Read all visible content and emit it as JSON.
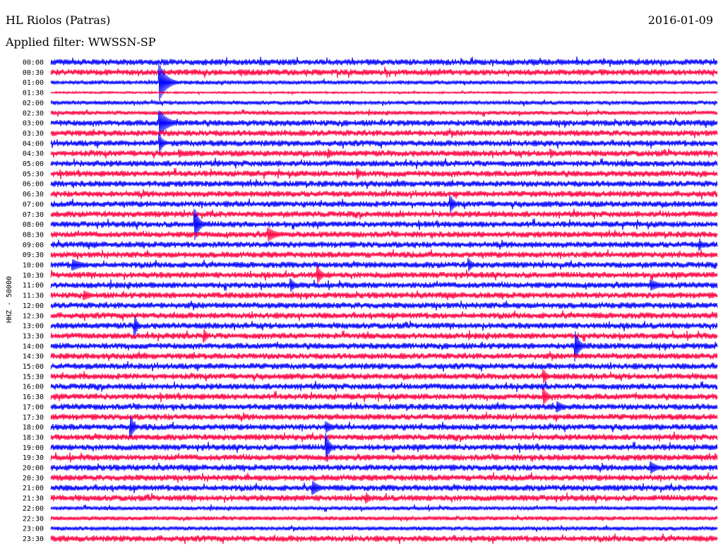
{
  "header": {
    "station": "HL Riolos (Patras)",
    "date": "2016-01-09",
    "filter": "Applied filter: WWSSN-SP"
  },
  "chart_data": {
    "type": "line",
    "title": "HL Riolos (Patras)",
    "subtitle": "Applied filter: WWSSN-SP",
    "ylabel": "HHZ - 50000",
    "colors": [
      "#0000ff",
      "#ff0040"
    ],
    "grid": false,
    "rows": [
      "00:00",
      "00:30",
      "01:00",
      "01:30",
      "02:00",
      "02:30",
      "03:00",
      "03:30",
      "04:00",
      "04:30",
      "05:00",
      "05:30",
      "06:00",
      "06:30",
      "07:00",
      "07:30",
      "08:00",
      "08:30",
      "09:00",
      "09:30",
      "10:00",
      "10:30",
      "11:00",
      "11:30",
      "12:00",
      "12:30",
      "13:00",
      "13:30",
      "14:00",
      "14:30",
      "15:00",
      "15:30",
      "16:00",
      "16:30",
      "17:00",
      "17:30",
      "18:00",
      "18:30",
      "19:00",
      "19:30",
      "20:00",
      "20:30",
      "21:00",
      "21:30",
      "22:00",
      "22:30",
      "23:00",
      "23:30"
    ],
    "noise_level": [
      3,
      3,
      2,
      1,
      2,
      2,
      3,
      3,
      3,
      3,
      3,
      3,
      3,
      3,
      3,
      3,
      3,
      3,
      3,
      3,
      3,
      3,
      3,
      3,
      3,
      3,
      3,
      3,
      3,
      3,
      3,
      3,
      3,
      3,
      3,
      3,
      3,
      3,
      3,
      3,
      3,
      3,
      3,
      3,
      2,
      2,
      2,
      3
    ],
    "events": [
      {
        "row": 2,
        "minute": 4.9,
        "amplitude": 26,
        "duration": 1.0
      },
      {
        "row": 6,
        "minute": 4.9,
        "amplitude": 18,
        "duration": 1.2
      },
      {
        "row": 8,
        "minute": 4.9,
        "amplitude": 14,
        "duration": 0.5
      },
      {
        "row": 9,
        "minute": 5.8,
        "amplitude": 6,
        "duration": 0.8
      },
      {
        "row": 9,
        "minute": 12.5,
        "amplitude": 7,
        "duration": 0.6
      },
      {
        "row": 9,
        "minute": 22.5,
        "amplitude": 7,
        "duration": 0.6
      },
      {
        "row": 11,
        "minute": 13.8,
        "amplitude": 8,
        "duration": 0.5
      },
      {
        "row": 14,
        "minute": 18.0,
        "amplitude": 12,
        "duration": 0.6
      },
      {
        "row": 16,
        "minute": 6.5,
        "amplitude": 22,
        "duration": 0.6
      },
      {
        "row": 17,
        "minute": 9.8,
        "amplitude": 10,
        "duration": 1.2
      },
      {
        "row": 18,
        "minute": 29.2,
        "amplitude": 9,
        "duration": 0.4
      },
      {
        "row": 20,
        "minute": 1.0,
        "amplitude": 8,
        "duration": 1.5
      },
      {
        "row": 20,
        "minute": 18.8,
        "amplitude": 10,
        "duration": 0.6
      },
      {
        "row": 21,
        "minute": 12.0,
        "amplitude": 14,
        "duration": 0.6
      },
      {
        "row": 22,
        "minute": 10.8,
        "amplitude": 10,
        "duration": 0.6
      },
      {
        "row": 22,
        "minute": 27.0,
        "amplitude": 8,
        "duration": 1.5
      },
      {
        "row": 23,
        "minute": 1.5,
        "amplitude": 7,
        "duration": 1.2
      },
      {
        "row": 26,
        "minute": 3.8,
        "amplitude": 14,
        "duration": 0.4
      },
      {
        "row": 27,
        "minute": 6.9,
        "amplitude": 10,
        "duration": 0.5
      },
      {
        "row": 28,
        "minute": 23.6,
        "amplitude": 22,
        "duration": 0.6
      },
      {
        "row": 31,
        "minute": 22.2,
        "amplitude": 10,
        "duration": 0.5
      },
      {
        "row": 33,
        "minute": 22.2,
        "amplitude": 12,
        "duration": 0.6
      },
      {
        "row": 34,
        "minute": 22.8,
        "amplitude": 8,
        "duration": 1.0
      },
      {
        "row": 36,
        "minute": 3.6,
        "amplitude": 16,
        "duration": 0.5
      },
      {
        "row": 36,
        "minute": 12.4,
        "amplitude": 8,
        "duration": 1.0
      },
      {
        "row": 38,
        "minute": 12.4,
        "amplitude": 20,
        "duration": 0.5
      },
      {
        "row": 40,
        "minute": 27.0,
        "amplitude": 9,
        "duration": 1.0
      },
      {
        "row": 42,
        "minute": 11.8,
        "amplitude": 10,
        "duration": 1.0
      },
      {
        "row": 43,
        "minute": 14.2,
        "amplitude": 8,
        "duration": 0.6
      }
    ]
  }
}
